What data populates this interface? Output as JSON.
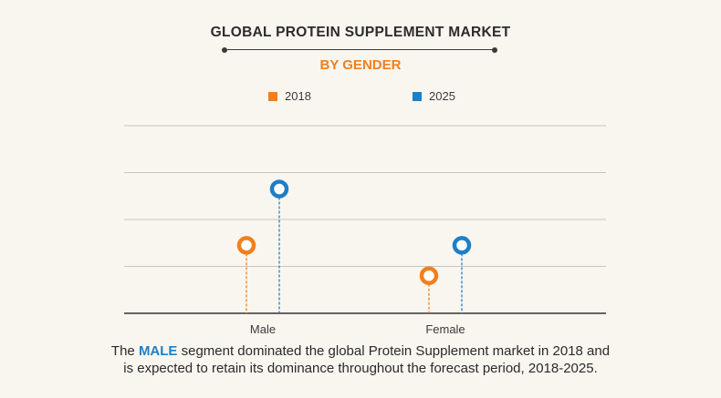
{
  "chart_data": {
    "type": "lollipop",
    "title": "GLOBAL PROTEIN SUPPLEMENT MARKET",
    "subtitle": "BY GENDER",
    "categories": [
      "Male",
      "Female"
    ],
    "series": [
      {
        "name": "2018",
        "color": "#f07f1e",
        "values": [
          2.9,
          1.6
        ]
      },
      {
        "name": "2025",
        "color": "#1f7fc6",
        "values": [
          5.3,
          2.9
        ]
      }
    ],
    "ylim": [
      0,
      8
    ],
    "gridlines": [
      2,
      4,
      6,
      8
    ],
    "xlabel": "",
    "ylabel": "",
    "legend_position": "top-center"
  },
  "caption": {
    "prefix": "The ",
    "highlight": "MALE",
    "line1_rest": " segment dominated the global Protein Supplement market in 2018 and",
    "line2": "is expected to retain its dominance throughout the forecast period, 2018-2025."
  }
}
